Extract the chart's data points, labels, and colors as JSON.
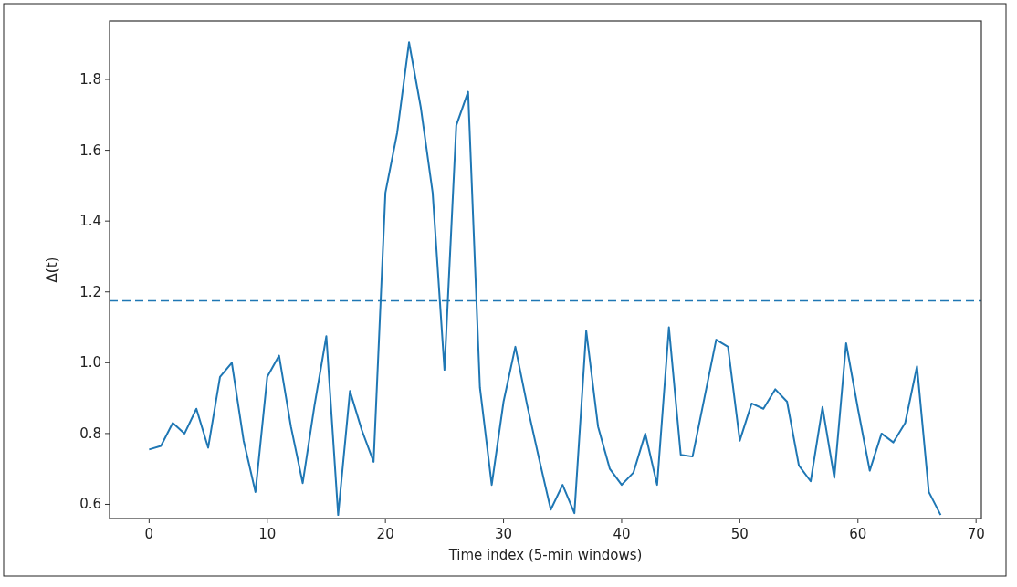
{
  "chart_data": {
    "type": "line",
    "xlabel": "Time index (5-min windows)",
    "ylabel": "Δ(t)",
    "xlim": [
      -3.35,
      70.45
    ],
    "xticks": [
      0,
      10,
      20,
      30,
      40,
      50,
      60,
      70
    ],
    "ylim": [
      0.56,
      1.965
    ],
    "yticks": [
      0.6,
      0.8,
      {
        "value": 1,
        "label": "1.0"
      },
      1.2,
      1.4,
      1.6,
      1.8
    ],
    "x": [
      0,
      1,
      2,
      3,
      4,
      5,
      6,
      7,
      8,
      9,
      10,
      11,
      12,
      13,
      14,
      15,
      16,
      17,
      18,
      19,
      20,
      21,
      22,
      23,
      24,
      25,
      26,
      27,
      28,
      29,
      30,
      31,
      32,
      33,
      34,
      35,
      36,
      37,
      38,
      39,
      40,
      41,
      42,
      43,
      44,
      45,
      46,
      47,
      48,
      49,
      50,
      51,
      52,
      53,
      54,
      55,
      56,
      57,
      58,
      59,
      60,
      61,
      62,
      63,
      64,
      65,
      66,
      67
    ],
    "series": [
      {
        "color": "#1f77b4",
        "values": [
          0.755,
          0.765,
          0.83,
          0.8,
          0.87,
          0.76,
          0.96,
          1.0,
          0.78,
          0.635,
          0.96,
          1.02,
          0.82,
          0.66,
          0.88,
          1.075,
          0.57,
          0.92,
          0.81,
          0.72,
          1.48,
          1.65,
          1.905,
          1.72,
          1.48,
          0.98,
          1.67,
          1.765,
          0.93,
          0.655,
          0.89,
          1.045,
          0.88,
          0.73,
          0.585,
          0.655,
          0.575,
          1.09,
          0.82,
          0.7,
          0.655,
          0.69,
          0.8,
          0.655,
          1.1,
          0.74,
          0.735,
          0.9,
          1.065,
          1.045,
          0.78,
          0.885,
          0.87,
          0.925,
          0.89,
          0.71,
          0.665,
          0.875,
          0.675,
          1.055,
          0.87,
          0.695,
          0.8,
          0.775,
          0.83,
          0.99,
          0.635,
          0.57
        ]
      }
    ],
    "ref_lines": [
      {
        "axis": "y",
        "value": 1.175,
        "color": "#1f77b4",
        "line_style": "dashed"
      }
    ],
    "line_style": "solid"
  }
}
